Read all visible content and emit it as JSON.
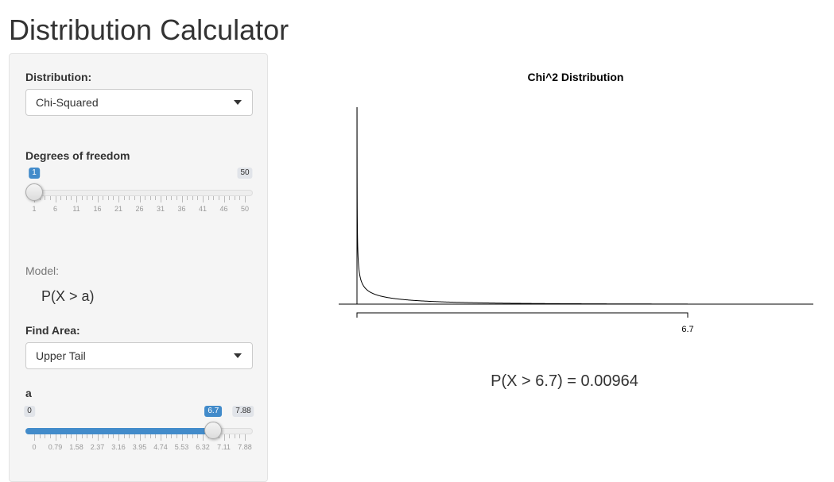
{
  "app": {
    "title": "Distribution Calculator"
  },
  "sidebar": {
    "distribution_label": "Distribution:",
    "distribution_value": "Chi-Squared",
    "df_label": "Degrees of freedom",
    "df_slider": {
      "min": 1,
      "max": 50,
      "value": 1,
      "min_label": "1",
      "max_label": "50",
      "value_label": "1",
      "tick_labels": [
        "1",
        "6",
        "11",
        "16",
        "21",
        "26",
        "31",
        "36",
        "41",
        "46",
        "50"
      ]
    },
    "model_label": "Model:",
    "model_formula": "P(X > a)",
    "find_area_label": "Find Area:",
    "find_area_value": "Upper Tail",
    "a_label": "a",
    "a_slider": {
      "min": 0,
      "max": 7.88,
      "value": 6.7,
      "min_label": "0",
      "max_label": "7.88",
      "value_label": "6.7",
      "tick_labels": [
        "0",
        "0.79",
        "1.58",
        "2.37",
        "3.16",
        "3.95",
        "4.74",
        "5.53",
        "6.32",
        "7.11",
        "7.88"
      ]
    }
  },
  "plot": {
    "title": "Chi^2 Distribution",
    "tick_label": "6.7",
    "result": "P(X > 6.7) = 0.00964"
  },
  "colors": {
    "accent": "#428bca",
    "panel": "#f5f5f5",
    "curve": "#000000"
  }
}
